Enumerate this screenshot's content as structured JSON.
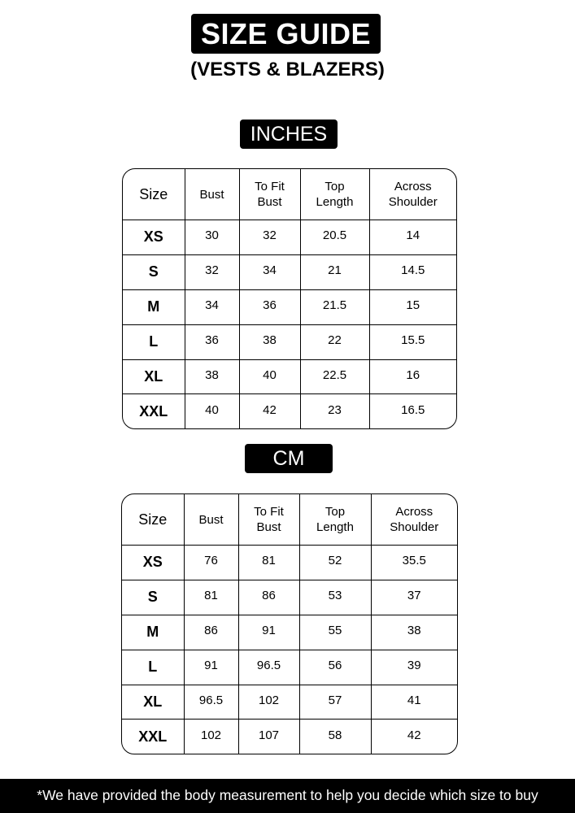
{
  "title": "SIZE GUIDE",
  "subtitle": "(VESTS & BLAZERS)",
  "headers": [
    "Size",
    "Bust",
    "To Fit\nBust",
    "Top\nLength",
    "Across\nShoulder"
  ],
  "tables": [
    {
      "unit": "INCHES",
      "rows": [
        [
          "XS",
          "30",
          "32",
          "20.5",
          "14"
        ],
        [
          "S",
          "32",
          "34",
          "21",
          "14.5"
        ],
        [
          "M",
          "34",
          "36",
          "21.5",
          "15"
        ],
        [
          "L",
          "36",
          "38",
          "22",
          "15.5"
        ],
        [
          "XL",
          "38",
          "40",
          "22.5",
          "16"
        ],
        [
          "XXL",
          "40",
          "42",
          "23",
          "16.5"
        ]
      ]
    },
    {
      "unit": "CM",
      "rows": [
        [
          "XS",
          "76",
          "81",
          "52",
          "35.5"
        ],
        [
          "S",
          "81",
          "86",
          "53",
          "37"
        ],
        [
          "M",
          "86",
          "91",
          "55",
          "38"
        ],
        [
          "L",
          "91",
          "96.5",
          "56",
          "39"
        ],
        [
          "XL",
          "96.5",
          "102",
          "57",
          "41"
        ],
        [
          "XXL",
          "102",
          "107",
          "58",
          "42"
        ]
      ]
    }
  ],
  "footer": "*We have provided the body measurement to help you decide which size to buy"
}
